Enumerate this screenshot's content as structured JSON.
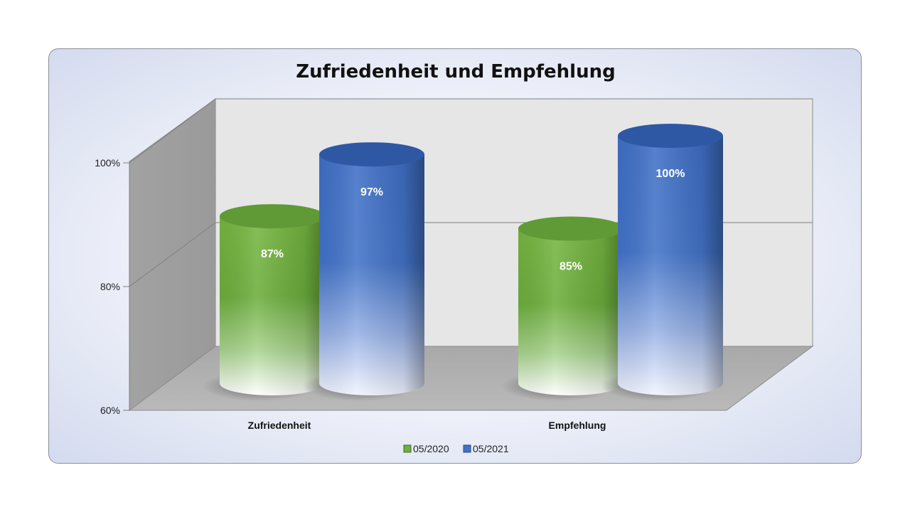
{
  "chart_data": {
    "type": "bar",
    "style": "3d-cylinder",
    "title": "Zufriedenheit und Empfehlung",
    "categories": [
      "Zufriedenheit",
      "Empfehlung"
    ],
    "series": [
      {
        "name": "05/2020",
        "values": [
          87,
          85
        ],
        "labels": [
          "87%",
          "85%"
        ],
        "color": "#70ad47"
      },
      {
        "name": "05/2021",
        "values": [
          97,
          100
        ],
        "labels": [
          "97%",
          "100%"
        ],
        "color": "#4472c4"
      }
    ],
    "yticks": [
      {
        "value": 60,
        "label": "60%"
      },
      {
        "value": 80,
        "label": "80%"
      },
      {
        "value": 100,
        "label": "100%"
      }
    ],
    "ylim": [
      60,
      110
    ],
    "grid": true,
    "legend_position": "bottom"
  }
}
